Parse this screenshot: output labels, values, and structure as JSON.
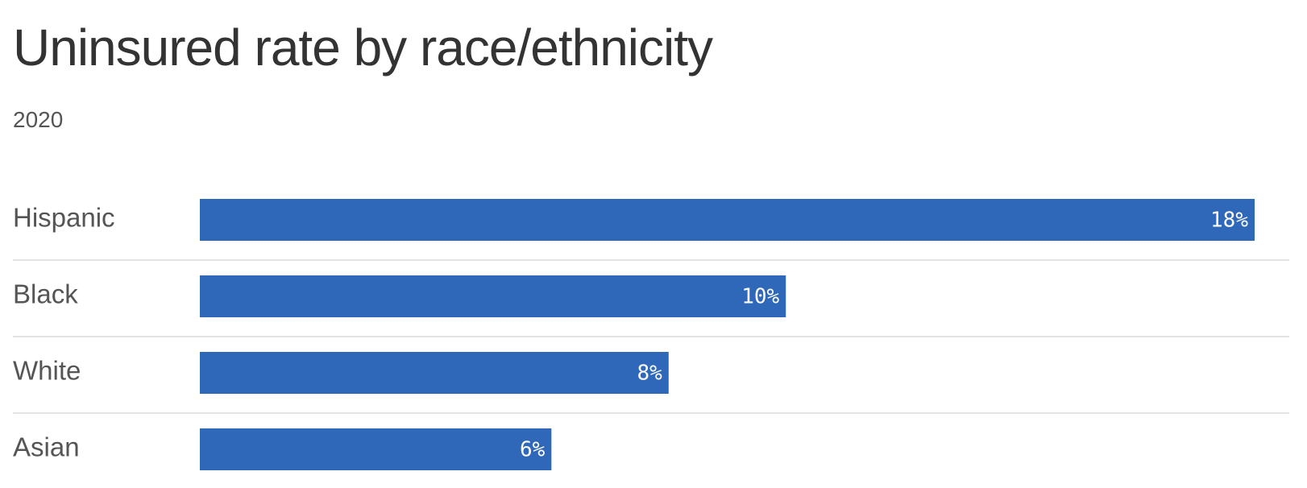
{
  "header": {
    "title": "Uninsured rate by race/ethnicity",
    "subtitle": "2020"
  },
  "colors": {
    "bar": "#2f67b9"
  },
  "chart_data": {
    "type": "bar",
    "orientation": "horizontal",
    "title": "Uninsured rate by race/ethnicity",
    "subtitle": "2020",
    "categories": [
      "Hispanic",
      "Black",
      "White",
      "Asian"
    ],
    "values": [
      18,
      10,
      8,
      6
    ],
    "value_labels": [
      "18%",
      "10%",
      "8%",
      "6%"
    ],
    "unit": "%",
    "xlim": [
      0,
      18
    ],
    "grid": false,
    "legend": "none"
  }
}
